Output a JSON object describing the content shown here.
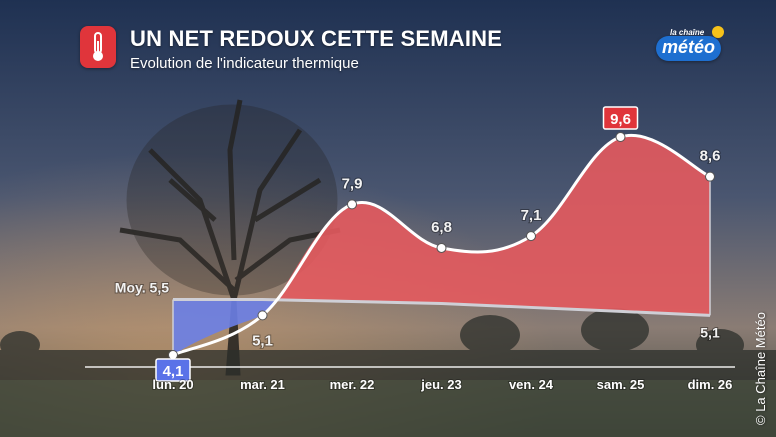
{
  "header": {
    "title": "UN NET REDOUX CETTE SEMAINE",
    "subtitle": "Evolution de l'indicateur thermique",
    "icon": "thermometer-icon"
  },
  "logo": {
    "small": "la chaîne",
    "main": "météo"
  },
  "copyright": "© La Chaîne Météo",
  "colors": {
    "warm": "#e45a5e",
    "cold": "#6c7fe6",
    "warm_label": "#e0353b",
    "cold_label": "#5a72e8"
  },
  "chart_data": {
    "type": "area",
    "categories": [
      "lun. 20",
      "mar. 21",
      "mer. 22",
      "jeu. 23",
      "ven. 24",
      "sam. 25",
      "dim. 26"
    ],
    "series": [
      {
        "values": [
          4.1,
          5.1,
          7.9,
          6.8,
          7.1,
          9.6,
          8.6
        ]
      },
      {
        "values": [
          5.5,
          5.5,
          5.45,
          5.4,
          5.3,
          5.2,
          5.1
        ]
      }
    ],
    "value_labels": [
      "4,1",
      "5,1",
      "7,9",
      "6,8",
      "7,1",
      "9,6",
      "8,6"
    ],
    "average_labels": {
      "start": "Moy. 5,5",
      "end": "5,1"
    },
    "ylim": [
      4.1,
      9.6
    ]
  }
}
